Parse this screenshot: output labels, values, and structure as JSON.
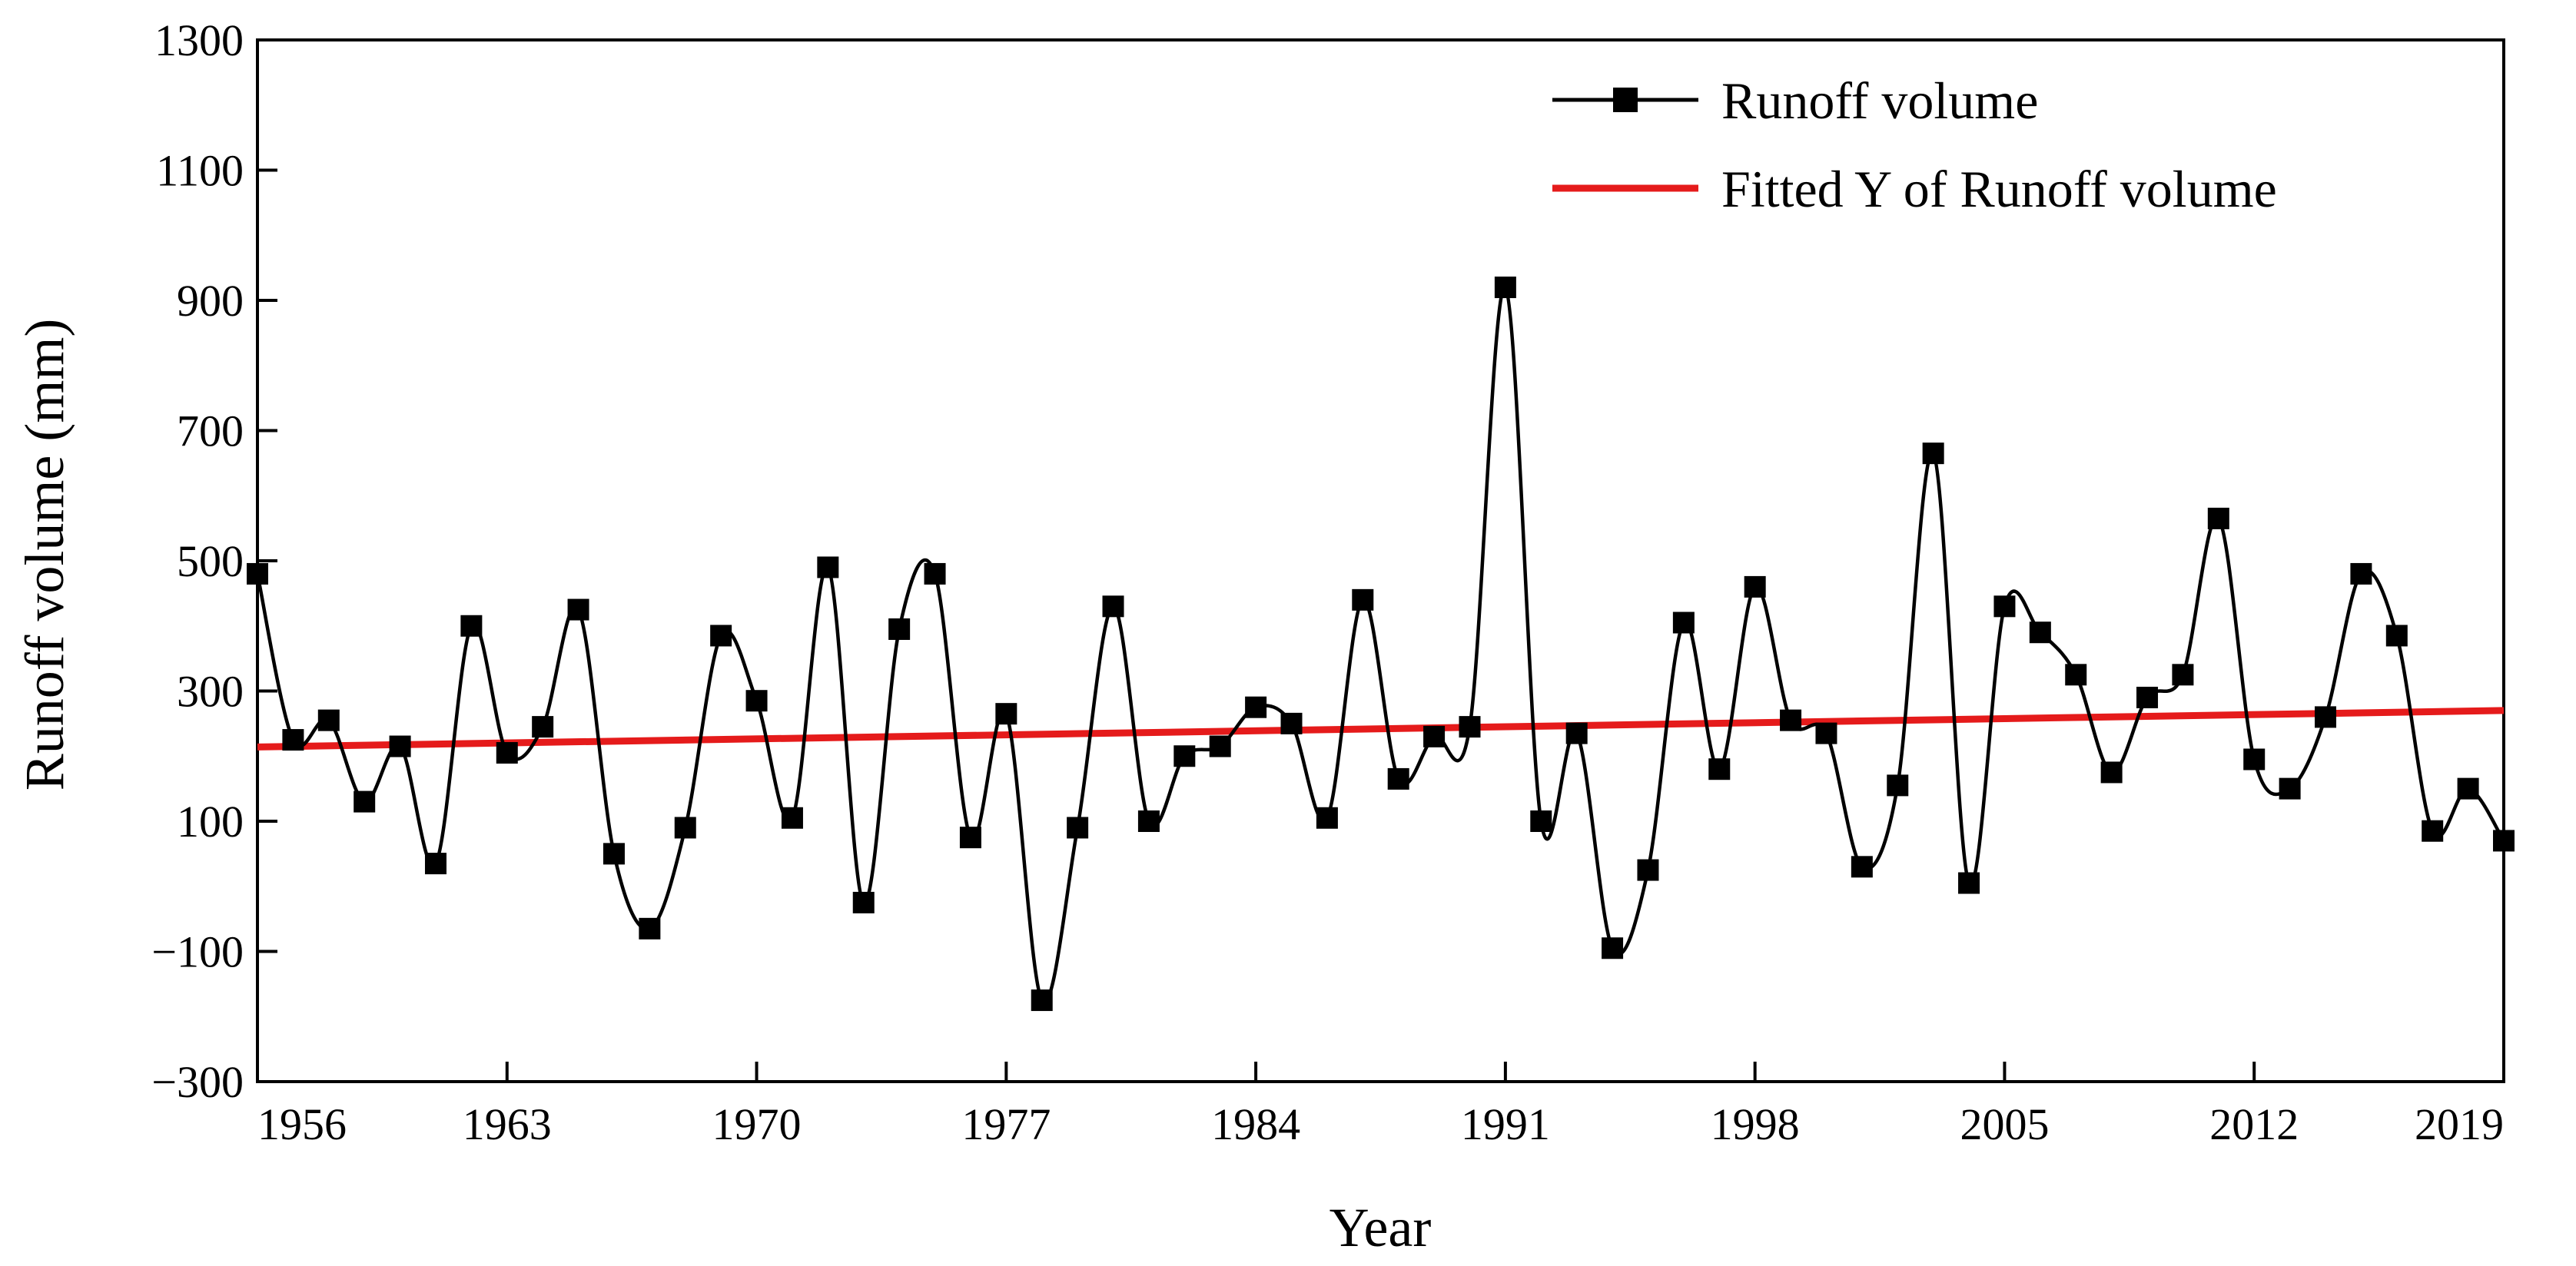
{
  "chart_data": {
    "type": "line",
    "xlabel": "Year",
    "ylabel": "Runoff volume (mm)",
    "xlim": [
      1956,
      2019
    ],
    "ylim": [
      -300,
      1300
    ],
    "x_ticks": [
      1956,
      1963,
      1970,
      1977,
      1984,
      1991,
      1998,
      2005,
      2012,
      2019
    ],
    "y_ticks": [
      -300,
      -100,
      100,
      300,
      500,
      700,
      900,
      1100,
      1300
    ],
    "grid": false,
    "legend_position": "top-right",
    "series": [
      {
        "name": "Runoff volume",
        "color": "#000000",
        "marker": "square",
        "smooth": true,
        "x": [
          1956,
          1957,
          1958,
          1959,
          1960,
          1961,
          1962,
          1963,
          1964,
          1965,
          1966,
          1967,
          1968,
          1969,
          1970,
          1971,
          1972,
          1973,
          1974,
          1975,
          1976,
          1977,
          1978,
          1979,
          1980,
          1981,
          1982,
          1983,
          1984,
          1985,
          1986,
          1987,
          1988,
          1989,
          1990,
          1991,
          1992,
          1993,
          1994,
          1995,
          1996,
          1997,
          1998,
          1999,
          2000,
          2001,
          2002,
          2003,
          2004,
          2005,
          2006,
          2007,
          2008,
          2009,
          2010,
          2011,
          2012,
          2013,
          2014,
          2015,
          2016,
          2017,
          2018,
          2019
        ],
        "y": [
          480,
          225,
          255,
          130,
          215,
          35,
          400,
          205,
          245,
          425,
          50,
          -65,
          90,
          385,
          285,
          105,
          490,
          -25,
          395,
          480,
          75,
          265,
          -175,
          90,
          430,
          100,
          200,
          215,
          275,
          250,
          105,
          440,
          165,
          230,
          245,
          920,
          100,
          235,
          -95,
          25,
          405,
          180,
          460,
          255,
          235,
          30,
          155,
          665,
          5,
          430,
          390,
          325,
          175,
          290,
          325,
          565,
          195,
          150,
          260,
          480,
          385,
          85,
          150,
          70
        ]
      },
      {
        "name": "Fitted Y of Runoff volume",
        "color": "#e51b1b",
        "type": "linear-fit",
        "x": [
          1956,
          2019
        ],
        "y": [
          214,
          270
        ]
      }
    ]
  }
}
